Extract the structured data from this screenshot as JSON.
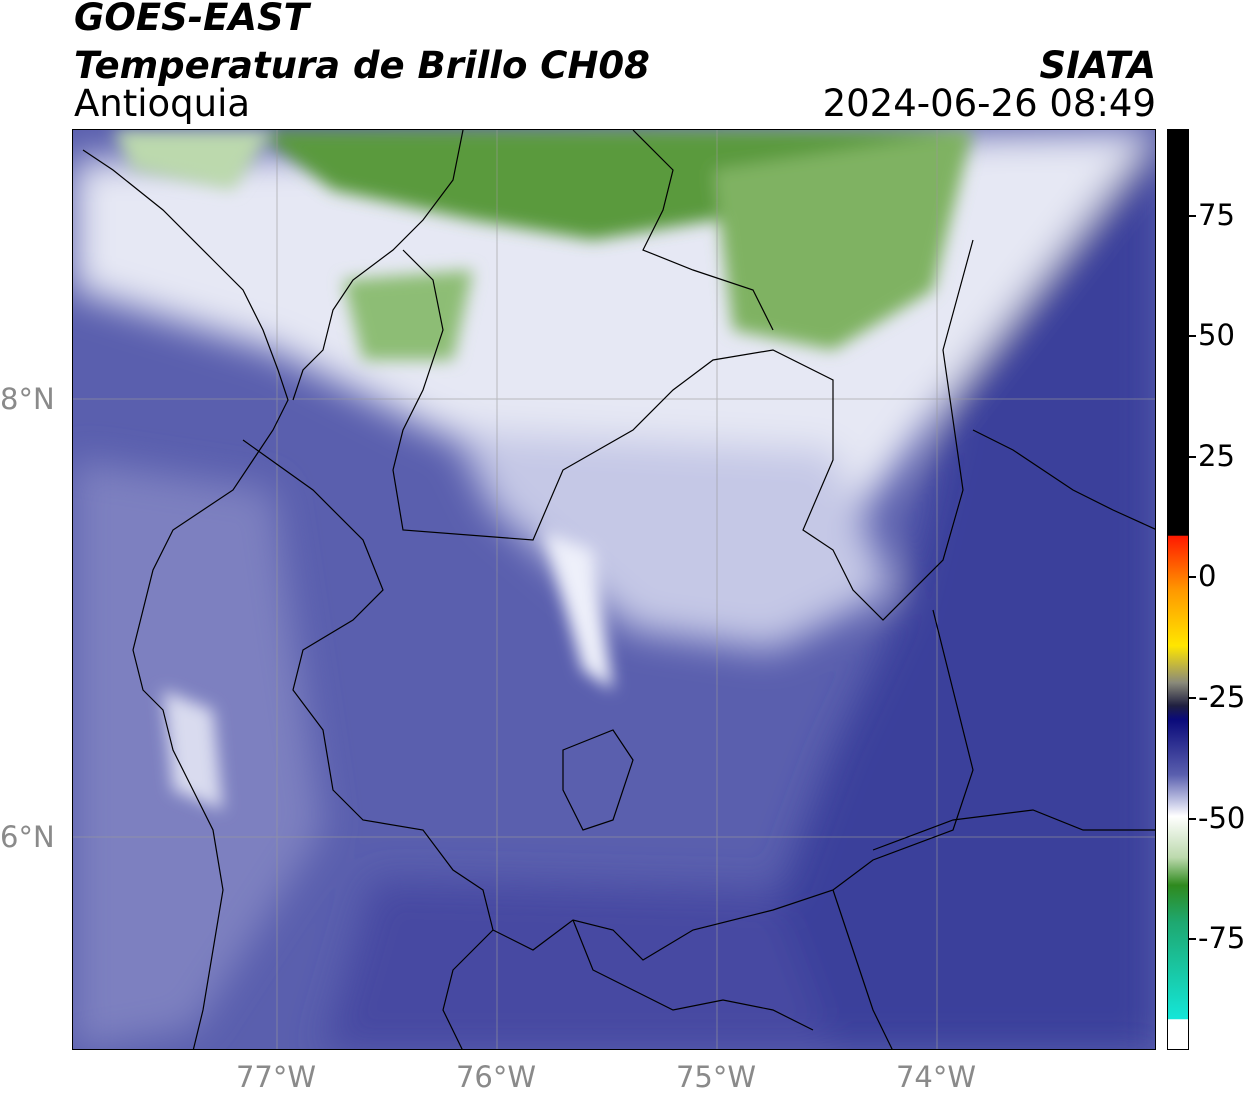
{
  "header": {
    "satellite": "GOES-EAST",
    "product": "Temperatura de Brillo CH08",
    "region": "Antioquia",
    "organization": "SIATA",
    "datetime": "2024-06-26 08:49"
  },
  "map": {
    "lon_labels": [
      "77°W",
      "76°W",
      "75°W",
      "74°W"
    ],
    "lat_labels": [
      "8°N",
      "6°N"
    ],
    "gridlines": true
  },
  "colorbar": {
    "tick_labels": [
      "75",
      "50",
      "25",
      "0",
      "-25",
      "-50",
      "-75"
    ],
    "colors": {
      "cyan": "#14e6d8",
      "green": "#2f8a1e",
      "white": "#ffffff",
      "navy": "#0a0a7a",
      "yellow": "#ffe600",
      "red": "#ff1a00",
      "black": "#000000"
    }
  }
}
